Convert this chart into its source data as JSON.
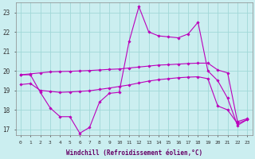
{
  "xlabel": "Windchill (Refroidissement éolien,°C)",
  "bg_color": "#cbeef0",
  "grid_color": "#a0d8d8",
  "line_color": "#bb00bb",
  "x": [
    0,
    1,
    2,
    3,
    4,
    5,
    6,
    7,
    8,
    9,
    10,
    11,
    12,
    13,
    14,
    15,
    16,
    17,
    18,
    19,
    20,
    21,
    22,
    23
  ],
  "line1": [
    19.8,
    19.85,
    19.9,
    19.95,
    19.97,
    19.98,
    20.0,
    20.02,
    20.05,
    20.08,
    20.1,
    20.15,
    20.2,
    20.25,
    20.3,
    20.32,
    20.35,
    20.38,
    20.4,
    20.4,
    20.05,
    19.9,
    17.4,
    17.55
  ],
  "line2": [
    19.3,
    19.35,
    19.0,
    18.95,
    18.9,
    18.92,
    18.95,
    18.98,
    19.05,
    19.12,
    19.2,
    19.28,
    19.38,
    19.48,
    19.55,
    19.6,
    19.65,
    19.68,
    19.7,
    19.6,
    18.2,
    18.0,
    17.3,
    17.5
  ],
  "line3": [
    19.8,
    19.8,
    18.9,
    18.1,
    17.65,
    17.65,
    16.8,
    17.1,
    18.4,
    18.85,
    18.9,
    21.5,
    23.3,
    22.0,
    21.8,
    21.75,
    21.7,
    21.9,
    22.5,
    20.0,
    19.5,
    18.6,
    17.2,
    17.5
  ],
  "ylim": [
    16.7,
    23.5
  ],
  "xlim": [
    -0.5,
    23.5
  ],
  "yticks": [
    17,
    18,
    19,
    20,
    21,
    22,
    23
  ],
  "xticks": [
    0,
    1,
    2,
    3,
    4,
    5,
    6,
    7,
    8,
    9,
    10,
    11,
    12,
    13,
    14,
    15,
    16,
    17,
    18,
    19,
    20,
    21,
    22,
    23
  ]
}
